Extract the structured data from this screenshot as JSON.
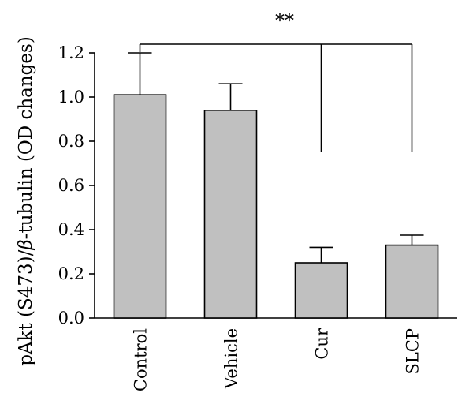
{
  "chart_data": {
    "type": "bar",
    "categories": [
      "Control",
      "Vehicle",
      "Cur",
      "SLCP"
    ],
    "values": [
      1.01,
      0.94,
      0.25,
      0.33
    ],
    "errors": [
      0.19,
      0.12,
      0.07,
      0.045
    ],
    "ylabel_parts": [
      "pAkt (S473)/",
      "β",
      "-tubulin (OD changes)"
    ],
    "ylim": [
      0,
      1.2
    ],
    "yticks": [
      0.0,
      0.2,
      0.4,
      0.6,
      0.8,
      1.0,
      1.2
    ],
    "ytick_labels": [
      "0.0",
      "0.2",
      "0.4",
      "0.6",
      "0.8",
      "1.0",
      "1.2"
    ],
    "significance": {
      "label": "**",
      "groups": [
        "Control",
        "Cur",
        "SLCP"
      ]
    },
    "bar_color": "#c0c0c0",
    "grid": false,
    "legend": "none"
  }
}
